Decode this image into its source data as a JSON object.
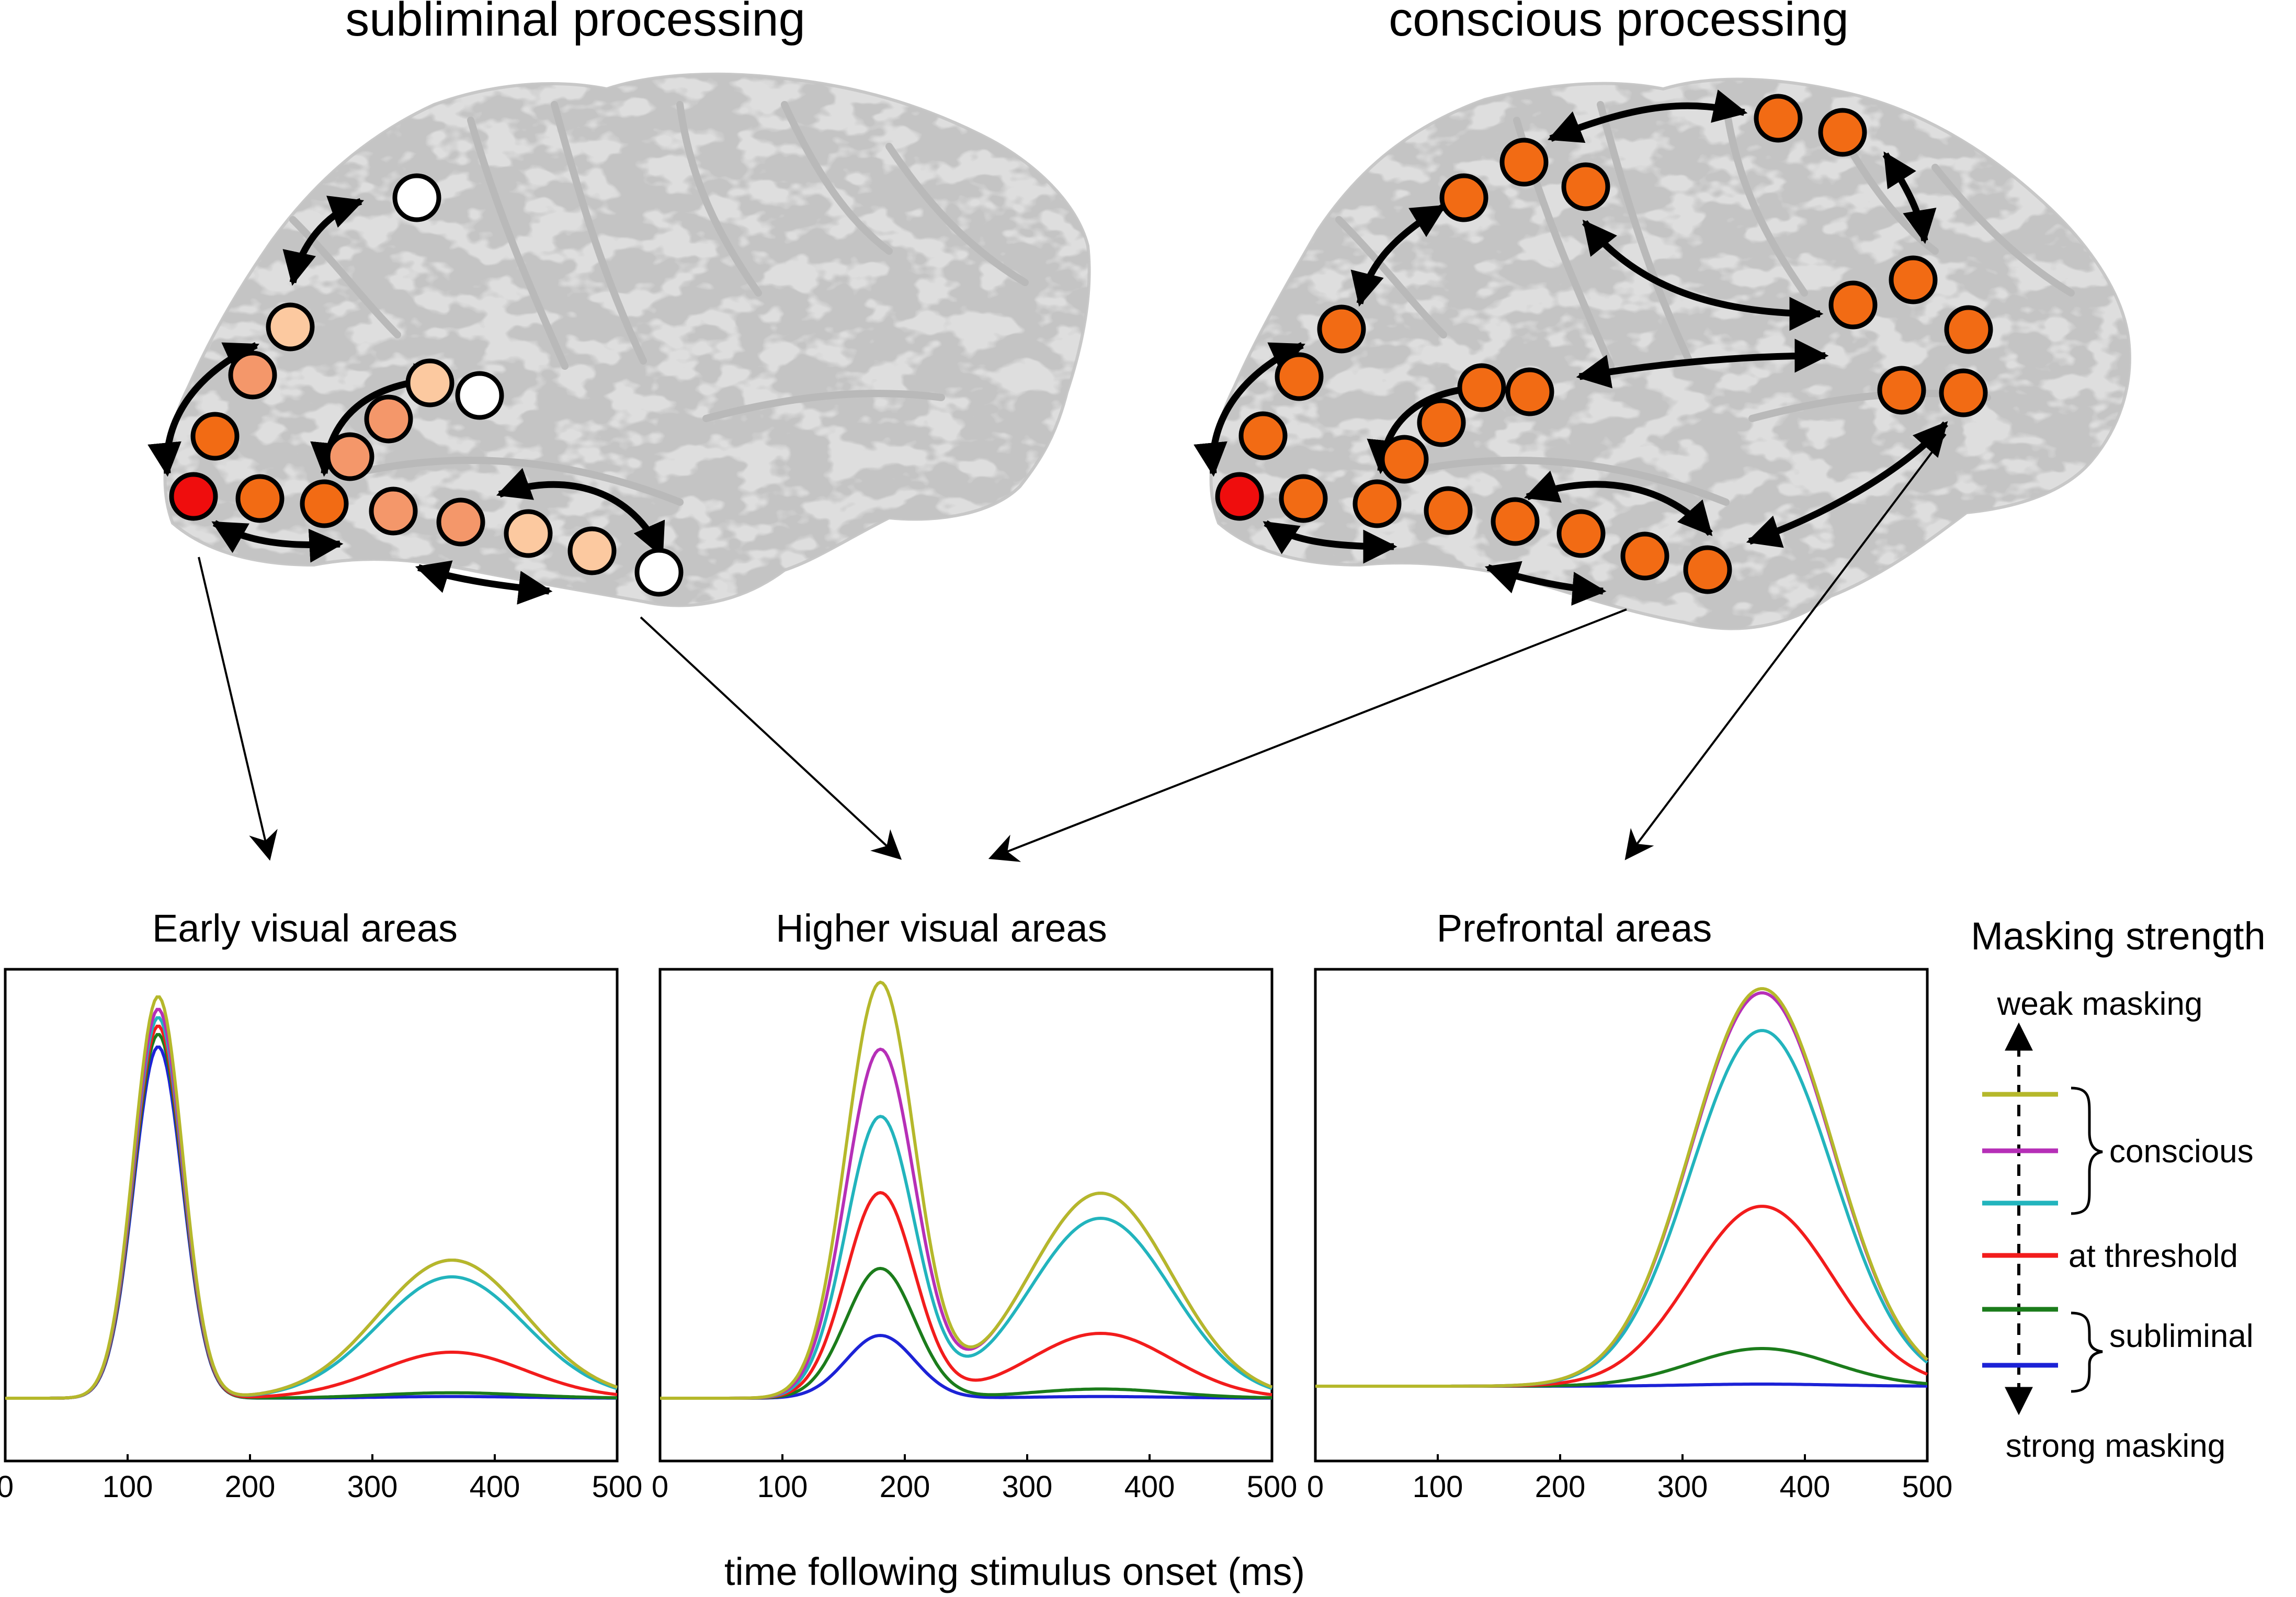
{
  "titles": {
    "subliminal": "subliminal processing",
    "conscious": "conscious processing"
  },
  "xlabel": "time following stimulus onset (ms)",
  "legend": {
    "title": "Masking strength",
    "weak": "weak masking",
    "strong": "strong masking",
    "conscious": "conscious",
    "threshold": "at threshold",
    "subliminal": "subliminal"
  },
  "colors": {
    "conscious_1": "#b5b82b",
    "conscious_2": "#b62fb7",
    "conscious_3": "#22b4bd",
    "threshold": "#f21c1c",
    "subliminal_1": "#1b7c1b",
    "subliminal_2": "#1c22d6",
    "node_peak": "#ef0d0d",
    "node_strong": "#f26b14",
    "brain": "#dcdcdc"
  },
  "chart_data": [
    {
      "type": "line",
      "title": "Early visual areas",
      "xlim": [
        0,
        500
      ],
      "xticks": [
        0,
        100,
        200,
        300,
        400,
        500
      ],
      "series_names": [
        "conscious 1",
        "conscious 2",
        "conscious 3",
        "at threshold",
        "subliminal 1",
        "subliminal 2"
      ],
      "early_peak": {
        "center_ms": 125,
        "width_ms": 20,
        "amplitudes": [
          0.96,
          0.93,
          0.91,
          0.89,
          0.87,
          0.84
        ]
      },
      "late_peak": {
        "center_ms": 365,
        "width_ms": 60,
        "amplitudes": [
          0.33,
          0.33,
          0.29,
          0.11,
          0.013,
          0.004
        ]
      },
      "ylim": [
        0,
        1
      ]
    },
    {
      "type": "line",
      "title": "Higher visual areas",
      "xlim": [
        0,
        500
      ],
      "xticks": [
        0,
        100,
        200,
        300,
        400,
        500
      ],
      "series_names": [
        "conscious 1",
        "conscious 2",
        "conscious 3",
        "at threshold",
        "subliminal 1",
        "subliminal 2"
      ],
      "early_peak": {
        "center_ms": 180,
        "width_ms": 28,
        "amplitudes": [
          0.99,
          0.83,
          0.67,
          0.49,
          0.31,
          0.15
        ]
      },
      "late_peak": {
        "center_ms": 360,
        "width_ms": 58,
        "amplitudes": [
          0.49,
          0.49,
          0.43,
          0.155,
          0.022,
          0.004
        ]
      },
      "ylim": [
        0,
        1
      ]
    },
    {
      "type": "line",
      "title": "Prefrontal areas",
      "xlim": [
        0,
        500
      ],
      "xticks": [
        0,
        100,
        200,
        300,
        400,
        500
      ],
      "series_names": [
        "conscious 1",
        "conscious 2",
        "conscious 3",
        "at threshold",
        "subliminal 1",
        "subliminal 2"
      ],
      "late_peak": {
        "center_ms": 365,
        "width_ms": 58,
        "amplitudes": [
          0.95,
          0.94,
          0.85,
          0.43,
          0.09,
          0.005
        ]
      },
      "ylim": [
        0,
        1
      ]
    }
  ]
}
